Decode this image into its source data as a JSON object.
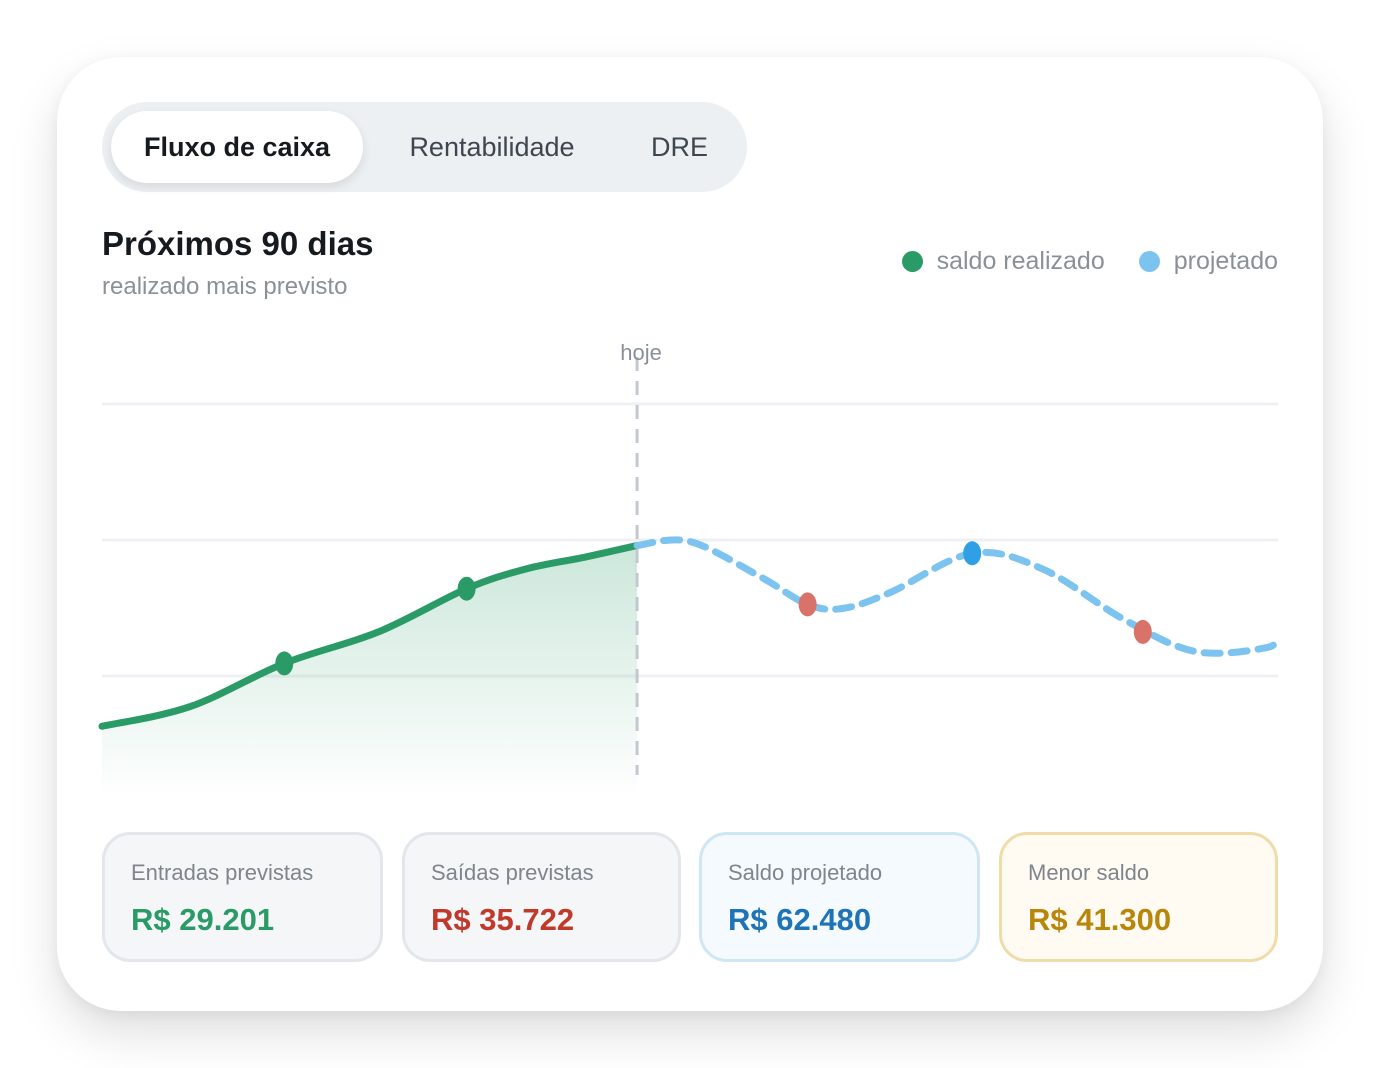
{
  "tabs": [
    {
      "label": "Fluxo de caixa",
      "active": true
    },
    {
      "label": "Rentabilidade",
      "active": false
    },
    {
      "label": "DRE",
      "active": false
    }
  ],
  "header": {
    "title": "Próximos 90 dias",
    "subtitle": "realizado mais previsto"
  },
  "legend": [
    {
      "label": "saldo realizado",
      "color": "#2a9b66"
    },
    {
      "label": "projetado",
      "color": "#7cc4ef"
    }
  ],
  "chart_data": {
    "type": "line",
    "today_label": "hoje",
    "grid": true,
    "legend_position": "top-right",
    "series": [
      {
        "name": "saldo realizado",
        "color": "#2a9b66",
        "style": "solid",
        "fill": true,
        "points": [
          {
            "x": 0,
            "y": 0.18
          },
          {
            "x": 0.075,
            "y": 0.23
          },
          {
            "x": 0.155,
            "y": 0.34
          },
          {
            "x": 0.235,
            "y": 0.42
          },
          {
            "x": 0.31,
            "y": 0.53
          },
          {
            "x": 0.36,
            "y": 0.58
          },
          {
            "x": 0.41,
            "y": 0.61
          },
          {
            "x": 0.455,
            "y": 0.64
          }
        ],
        "markers": [
          {
            "x": 0.155,
            "y": 0.34,
            "color": "#2a9b66"
          },
          {
            "x": 0.31,
            "y": 0.53,
            "color": "#2a9b66"
          }
        ]
      },
      {
        "name": "projetado",
        "color": "#7cc4ef",
        "style": "dashed",
        "fill": false,
        "points": [
          {
            "x": 0.455,
            "y": 0.64
          },
          {
            "x": 0.5,
            "y": 0.65
          },
          {
            "x": 0.56,
            "y": 0.56
          },
          {
            "x": 0.6,
            "y": 0.49
          },
          {
            "x": 0.63,
            "y": 0.48
          },
          {
            "x": 0.67,
            "y": 0.52
          },
          {
            "x": 0.74,
            "y": 0.62
          },
          {
            "x": 0.8,
            "y": 0.58
          },
          {
            "x": 0.87,
            "y": 0.45
          },
          {
            "x": 0.93,
            "y": 0.37
          },
          {
            "x": 0.99,
            "y": 0.38
          },
          {
            "x": 1.0,
            "y": 0.41
          }
        ],
        "markers": [
          {
            "x": 0.6,
            "y": 0.49,
            "color": "#d9736a"
          },
          {
            "x": 0.74,
            "y": 0.62,
            "color": "#2f9fe6"
          },
          {
            "x": 0.885,
            "y": 0.42,
            "color": "#d9736a"
          }
        ]
      }
    ]
  },
  "kpis": [
    {
      "label": "Entradas previstas",
      "value": "R$ 29.201",
      "color": "#2a9b66"
    },
    {
      "label": "Saídas previstas",
      "value": "R$ 35.722",
      "color": "#c0392b"
    },
    {
      "label": "Saldo projetado",
      "value": "R$ 62.480",
      "color": "#1f73b7"
    },
    {
      "label": "Menor saldo",
      "value": "R$ 41.300",
      "color": "#b8860b"
    }
  ]
}
